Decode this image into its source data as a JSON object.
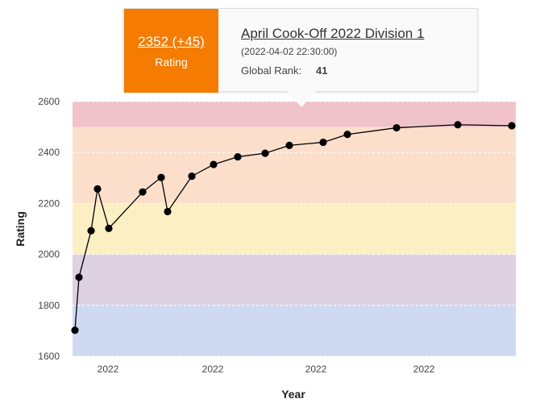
{
  "chart_data": {
    "type": "line",
    "xlabel": "Year",
    "ylabel": "Rating",
    "ylim": [
      1600,
      2600
    ],
    "yticks": [
      1600,
      1800,
      2000,
      2200,
      2400,
      2600
    ],
    "xtick_labels": [
      "2022",
      "2022",
      "2022",
      "2022"
    ],
    "grid": false,
    "rating_bands": [
      {
        "from": 1600,
        "to": 1800,
        "color": "#cfdaf2"
      },
      {
        "from": 1800,
        "to": 2000,
        "color": "#ddd1e2"
      },
      {
        "from": 2000,
        "to": 2200,
        "color": "#fcefc4"
      },
      {
        "from": 2200,
        "to": 2500,
        "color": "#fbdfcb"
      },
      {
        "from": 2500,
        "to": 2600,
        "color": "#f0c3ca"
      }
    ],
    "line_color": "#000000",
    "series": [
      {
        "values": [
          1702,
          1910,
          2093,
          2257,
          2102,
          2245,
          2302,
          2168,
          2307,
          2353,
          2383,
          2397,
          2428,
          2440,
          2471,
          2497,
          2509,
          2505
        ]
      }
    ]
  },
  "tooltip": {
    "rating_change": "2352 (+45)",
    "rating_label": "Rating",
    "contest_name": "April Cook-Off 2022 Division 1",
    "contest_time": "(2022-04-02 22:30:00)",
    "rank_label": "Global Rank:",
    "rank_value": "41",
    "accent_color": "#f57c00"
  }
}
